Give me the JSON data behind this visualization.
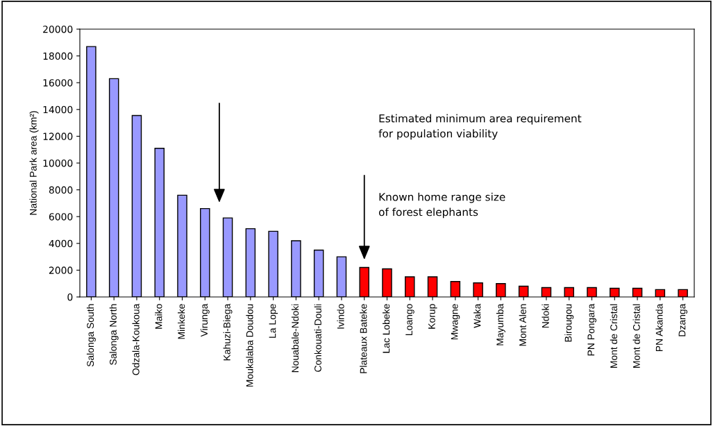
{
  "chart_data": {
    "type": "bar",
    "ylabel": "National Park area (km²)",
    "categories": [
      "Salonga South",
      "Salonga North",
      "Odzala-Koukoua",
      "Maiko",
      "Minkeke",
      "Virunga",
      "Kahuzi-Biega",
      "Moukalaba Doudou",
      "La Lope",
      "Nouabale-Ndoki",
      "Conkouati-Douli",
      "Ivindo",
      "Plateaux Bateke",
      "Lac Lobeke",
      "Loango",
      "Korup",
      "Mwagne",
      "Waka",
      "Mayumba",
      "Mont Alen",
      "Ndoki",
      "Birougou",
      "PN Pongara",
      "Mont de Cristal",
      "Mont de Cristal",
      "PN Akanda",
      "Dzanga"
    ],
    "values": [
      18700,
      16300,
      13550,
      11100,
      7600,
      6600,
      5900,
      5100,
      4900,
      4200,
      3500,
      3000,
      2200,
      2100,
      1500,
      1500,
      1150,
      1050,
      1000,
      800,
      700,
      700,
      700,
      650,
      650,
      550,
      550
    ],
    "colors": [
      "#9999ff",
      "#9999ff",
      "#9999ff",
      "#9999ff",
      "#9999ff",
      "#9999ff",
      "#9999ff",
      "#9999ff",
      "#9999ff",
      "#9999ff",
      "#9999ff",
      "#9999ff",
      "#ff0000",
      "#ff0000",
      "#ff0000",
      "#ff0000",
      "#ff0000",
      "#ff0000",
      "#ff0000",
      "#ff0000",
      "#ff0000",
      "#ff0000",
      "#ff0000",
      "#ff0000",
      "#ff0000",
      "#ff0000",
      "#ff0000"
    ],
    "ylim": [
      0,
      20000
    ],
    "yticks": [
      0,
      2000,
      4000,
      6000,
      8000,
      10000,
      12000,
      14000,
      16000,
      18000,
      20000
    ],
    "grid": false,
    "legend": false,
    "annotations": [
      "Estimated minimum area requirement\nfor population viability",
      "Known home range size\nof forest elephants"
    ]
  }
}
